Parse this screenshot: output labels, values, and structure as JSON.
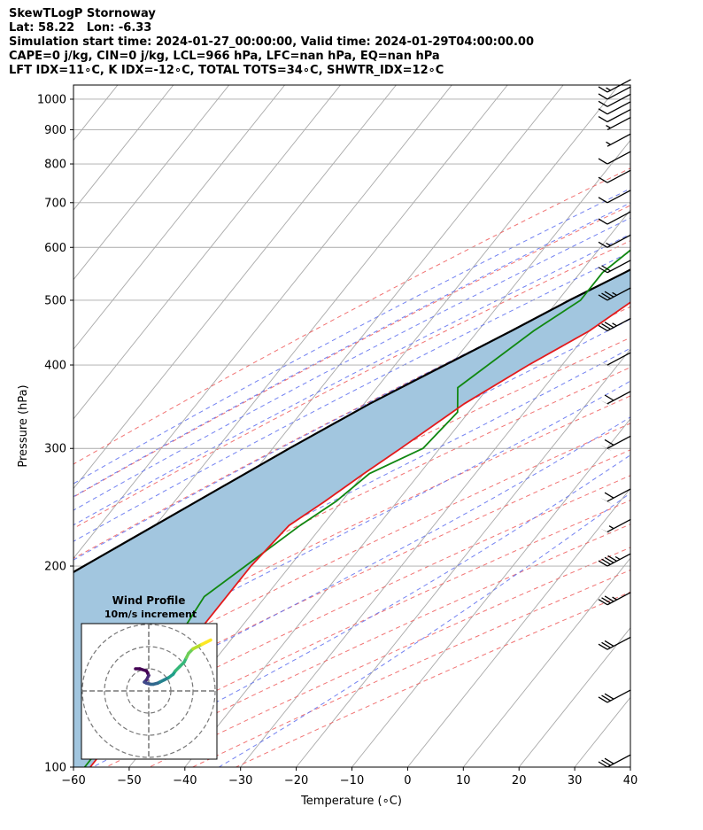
{
  "header": {
    "line1": "SkewTLogP Stornoway",
    "line2": "Lat: 58.22   Lon: -6.33",
    "line3": "Simulation start time: 2024-01-27_00:00:00, Valid time: 2024-01-29T04:00:00.00",
    "line4": "CAPE=0 j/kg, CIN=0 j/kg, LCL=966 hPa, LFC=nan hPa, EQ=nan hPa",
    "line5": "LFT IDX=11∘C, K IDX=-12∘C, TOTAL TOTS=34∘C, SHWTR_IDX=12∘C"
  },
  "colors": {
    "temperature": "#e31a1c",
    "dewpoint": "#118811",
    "parcel": "#000000",
    "fill": "#a2c6df",
    "dry_adiabat": "#ee5a5a",
    "moist_adiabat": "#5a6cee",
    "isotherm": "#aaaaaa"
  },
  "chart_data": [
    {
      "type": "line",
      "xlabel": "Temperature (∘C)",
      "ylabel": "Pressure (hPa)",
      "xlim": [
        -60,
        40
      ],
      "ylim": [
        1050,
        100
      ],
      "y_scale": "log",
      "x_ticks": [
        "−60",
        "−50",
        "−40",
        "−30",
        "−20",
        "−10",
        "0",
        "10",
        "20",
        "30",
        "40"
      ],
      "y_ticks": [
        "1000",
        "900",
        "800",
        "700",
        "600",
        "500",
        "400",
        "300",
        "200",
        "100"
      ],
      "y_tick_values": [
        1000,
        900,
        800,
        700,
        600,
        500,
        400,
        300,
        200,
        100
      ],
      "grid": true,
      "series": [
        {
          "role": "temperature",
          "points": [
            [
              1000,
              4
            ],
            [
              975,
              2
            ],
            [
              950,
              1
            ],
            [
              925,
              0
            ],
            [
              900,
              -1
            ],
            [
              850,
              -2.5
            ],
            [
              800,
              -4.5
            ],
            [
              750,
              -7
            ],
            [
              700,
              -10
            ],
            [
              650,
              -13.5
            ],
            [
              600,
              -17.5
            ],
            [
              550,
              -22
            ],
            [
              500,
              -26.5
            ],
            [
              450,
              -30
            ],
            [
              400,
              -36
            ],
            [
              350,
              -42
            ],
            [
              300,
              -47
            ],
            [
              275,
              -50
            ],
            [
              250,
              -53
            ],
            [
              230,
              -56
            ],
            [
              200,
              -57
            ],
            [
              150,
              -57
            ],
            [
              100,
              -57
            ]
          ]
        },
        {
          "role": "dewpoint",
          "points": [
            [
              1000,
              1.5
            ],
            [
              975,
              1
            ],
            [
              950,
              -0.5
            ],
            [
              930,
              -3
            ],
            [
              900,
              -13
            ],
            [
              850,
              -16
            ],
            [
              800,
              -17
            ],
            [
              750,
              -20
            ],
            [
              700,
              -25
            ],
            [
              650,
              -30
            ],
            [
              600,
              -34
            ],
            [
              550,
              -36
            ],
            [
              500,
              -36
            ],
            [
              450,
              -40
            ],
            [
              370,
              -45.5
            ],
            [
              340,
              -42
            ],
            [
              300,
              -43
            ],
            [
              275,
              -49
            ],
            [
              250,
              -51
            ],
            [
              230,
              -54
            ],
            [
              200,
              -58
            ],
            [
              180,
              -61
            ],
            [
              160,
              -60
            ],
            [
              130,
              -58
            ],
            [
              100,
              -58
            ]
          ]
        },
        {
          "role": "parcel",
          "points": [
            [
              1000,
              2
            ],
            [
              960,
              -0.5
            ],
            [
              900,
              -4
            ],
            [
              850,
              -7
            ],
            [
              800,
              -10
            ],
            [
              750,
              -14
            ],
            [
              700,
              -18
            ],
            [
              650,
              -22
            ],
            [
              600,
              -27
            ],
            [
              550,
              -32
            ],
            [
              500,
              -38
            ],
            [
              450,
              -44
            ],
            [
              400,
              -51
            ],
            [
              350,
              -59
            ],
            [
              300,
              -67
            ],
            [
              250,
              -76
            ],
            [
              200,
              -87
            ],
            [
              150,
              -101
            ],
            [
              100,
              -122
            ]
          ]
        }
      ],
      "wind_barbs": [
        {
          "p": 1025,
          "speed": 15
        },
        {
          "p": 1000,
          "speed": 10
        },
        {
          "p": 975,
          "speed": 10
        },
        {
          "p": 950,
          "speed": 10
        },
        {
          "p": 925,
          "speed": 10
        },
        {
          "p": 900,
          "speed": 5
        },
        {
          "p": 850,
          "speed": 5
        },
        {
          "p": 800,
          "speed": 10
        },
        {
          "p": 750,
          "speed": 10
        },
        {
          "p": 700,
          "speed": 10
        },
        {
          "p": 650,
          "speed": 10
        },
        {
          "p": 600,
          "speed": 15
        },
        {
          "p": 550,
          "speed": 20
        },
        {
          "p": 500,
          "speed": 35
        },
        {
          "p": 450,
          "speed": 35
        },
        {
          "p": 400,
          "speed": 50
        },
        {
          "p": 350,
          "speed": 60
        },
        {
          "p": 300,
          "speed": 60
        },
        {
          "p": 250,
          "speed": 60
        },
        {
          "p": 225,
          "speed": 55
        },
        {
          "p": 200,
          "speed": 45
        },
        {
          "p": 175,
          "speed": 35
        },
        {
          "p": 150,
          "speed": 30
        },
        {
          "p": 125,
          "speed": 30
        },
        {
          "p": 100,
          "speed": 30
        }
      ]
    },
    {
      "type": "line",
      "title": "Wind Profile",
      "subtitle": "10m/s increment",
      "rings": [
        1,
        2,
        3
      ],
      "hodograph": [
        [
          -6,
          10
        ],
        [
          -4,
          10
        ],
        [
          -1,
          9
        ],
        [
          0,
          7
        ],
        [
          -1,
          5
        ],
        [
          -2,
          4
        ],
        [
          -1,
          3.5
        ],
        [
          1,
          3
        ],
        [
          2,
          3
        ],
        [
          4,
          3.5
        ],
        [
          5,
          4
        ],
        [
          7,
          5
        ],
        [
          9,
          6
        ],
        [
          11,
          7.5
        ],
        [
          12,
          9
        ],
        [
          14,
          11
        ],
        [
          16,
          13
        ],
        [
          17,
          15
        ],
        [
          18,
          17
        ],
        [
          20,
          19
        ],
        [
          22,
          20
        ],
        [
          24,
          21
        ],
        [
          26,
          22
        ],
        [
          28,
          23
        ]
      ]
    }
  ]
}
